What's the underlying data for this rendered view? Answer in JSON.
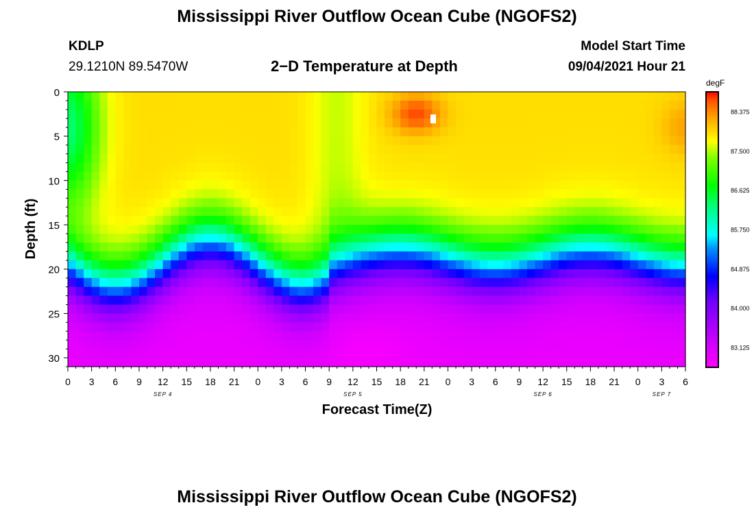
{
  "header": {
    "title": "Mississippi River Outflow Ocean Cube (NGOFS2)",
    "station_id": "KDLP",
    "coords": "29.1210N  89.5470W",
    "subtitle": "2−D Temperature at Depth",
    "start_label": "Model Start Time",
    "start_value": "09/04/2021 Hour 21",
    "footer_title": "Mississippi River Outflow Ocean Cube (NGOFS2)"
  },
  "chart_data": {
    "type": "heatmap",
    "title": "2−D Temperature at Depth",
    "xlabel": "Forecast Time(Z)",
    "ylabel": "Depth (ft)",
    "x_range_hours_from_sep4_0z": [
      0,
      78
    ],
    "x_tick_labels": [
      "0",
      "3",
      "6",
      "9",
      "12",
      "15",
      "18",
      "21",
      "0",
      "3",
      "6",
      "9",
      "12",
      "15",
      "18",
      "21",
      "0",
      "3",
      "6",
      "9",
      "12",
      "15",
      "18",
      "21",
      "0",
      "3",
      "6"
    ],
    "date_labels": [
      {
        "text": "SEP 4",
        "at_hour": 12
      },
      {
        "text": "SEP 5",
        "at_hour": 36
      },
      {
        "text": "SEP 6",
        "at_hour": 60
      },
      {
        "text": "SEP 7",
        "at_hour": 75
      }
    ],
    "y_range": [
      0,
      31
    ],
    "y_ticks": [
      0,
      5,
      10,
      15,
      20,
      25,
      30
    ],
    "y_inverted": true,
    "colorbar": {
      "unit": "degF",
      "min": 82.6875,
      "max": 88.8125,
      "labels": [
        "88.375",
        "87.500",
        "86.625",
        "85.750",
        "84.875",
        "84.000",
        "83.125"
      ],
      "label_values": [
        88.375,
        87.5,
        86.625,
        85.75,
        84.875,
        84.0,
        83.125
      ]
    },
    "grid": false,
    "notes": "Warm (~87-88.4 degF) layer near surface, strongest around hour 44 at ~3 ft; thermocline oscillating around 15-22 ft; cold (~82.8-83.5 degF) below 25 ft."
  }
}
